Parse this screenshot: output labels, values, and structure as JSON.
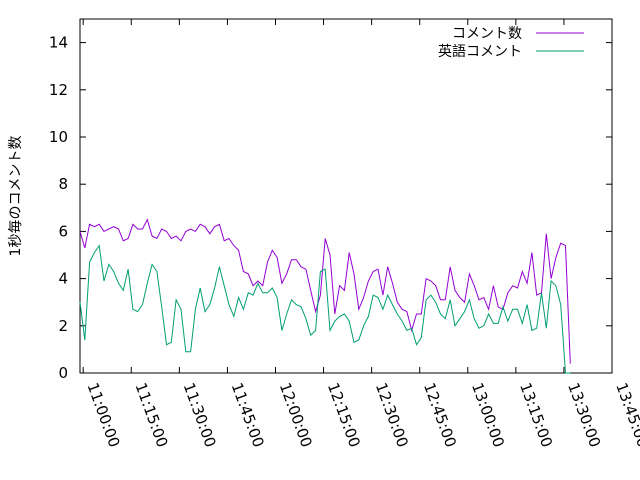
{
  "chart_data": {
    "type": "line",
    "title": "",
    "xlabel": "",
    "ylabel": "1秒毎のコメント数",
    "ylim": [
      0,
      15
    ],
    "yticks": [
      0,
      2,
      4,
      6,
      8,
      10,
      12,
      14
    ],
    "xlim": [
      "10:59:00",
      "13:45:00"
    ],
    "xticks": [
      "11:00:00",
      "11:15:00",
      "11:30:00",
      "11:45:00",
      "12:00:00",
      "12:15:00",
      "12:30:00",
      "12:45:00",
      "13:00:00",
      "13:15:00",
      "13:30:00",
      "13:45:00"
    ],
    "grid": false,
    "legend": "top-right",
    "x_step_seconds": 90,
    "x_start": "10:59:00",
    "series": [
      {
        "name": "コメント数",
        "color": "#9400d3",
        "values": [
          6.0,
          5.3,
          6.3,
          6.2,
          6.3,
          6.0,
          6.1,
          6.2,
          6.1,
          5.6,
          5.7,
          6.3,
          6.1,
          6.1,
          6.5,
          5.8,
          5.7,
          6.1,
          6.0,
          5.7,
          5.8,
          5.6,
          6.0,
          6.1,
          6.0,
          6.3,
          6.2,
          5.9,
          6.2,
          6.3,
          5.6,
          5.7,
          5.4,
          5.2,
          4.3,
          4.2,
          3.7,
          3.9,
          3.7,
          4.7,
          5.2,
          4.9,
          3.8,
          4.2,
          4.8,
          4.8,
          4.5,
          4.4,
          3.5,
          2.6,
          3.3,
          5.7,
          5.0,
          2.5,
          3.7,
          3.5,
          5.1,
          4.2,
          2.7,
          3.2,
          3.9,
          4.3,
          4.4,
          3.3,
          4.5,
          3.8,
          3.0,
          2.7,
          2.6,
          1.8,
          2.5,
          2.5,
          4.0,
          3.9,
          3.7,
          3.1,
          3.1,
          4.5,
          3.5,
          3.2,
          3.0,
          4.2,
          3.7,
          3.1,
          3.2,
          2.7,
          3.7,
          2.8,
          2.7,
          3.4,
          3.7,
          3.6,
          4.3,
          3.8,
          5.1,
          3.3,
          3.4,
          5.9,
          4.0,
          4.9,
          5.5,
          5.4,
          0.4
        ]
      },
      {
        "name": "英語コメント",
        "color": "#009e73",
        "values": [
          3.0,
          1.4,
          4.7,
          5.1,
          5.4,
          3.9,
          4.6,
          4.3,
          3.8,
          3.5,
          4.4,
          2.7,
          2.6,
          2.9,
          3.8,
          4.6,
          4.3,
          2.8,
          1.2,
          1.3,
          3.1,
          2.7,
          0.9,
          0.9,
          2.7,
          3.6,
          2.6,
          2.9,
          3.6,
          4.5,
          3.7,
          2.9,
          2.4,
          3.2,
          2.7,
          3.4,
          3.3,
          3.8,
          3.4,
          3.4,
          3.6,
          3.2,
          1.8,
          2.5,
          3.1,
          2.9,
          2.8,
          2.3,
          1.6,
          1.8,
          4.3,
          4.4,
          1.8,
          2.2,
          2.4,
          2.5,
          2.2,
          1.3,
          1.4,
          2.0,
          2.4,
          3.3,
          3.2,
          2.7,
          3.3,
          2.9,
          2.5,
          2.2,
          1.8,
          1.9,
          1.2,
          1.5,
          3.1,
          3.3,
          3.0,
          2.5,
          2.3,
          3.1,
          2.0,
          2.3,
          2.6,
          3.1,
          2.3,
          1.9,
          2.0,
          2.5,
          2.1,
          2.1,
          2.8,
          2.2,
          2.7,
          2.7,
          2.1,
          2.9,
          1.8,
          1.9,
          3.4,
          1.9,
          3.9,
          3.7,
          2.9,
          0.0,
          0.0
        ]
      }
    ]
  }
}
